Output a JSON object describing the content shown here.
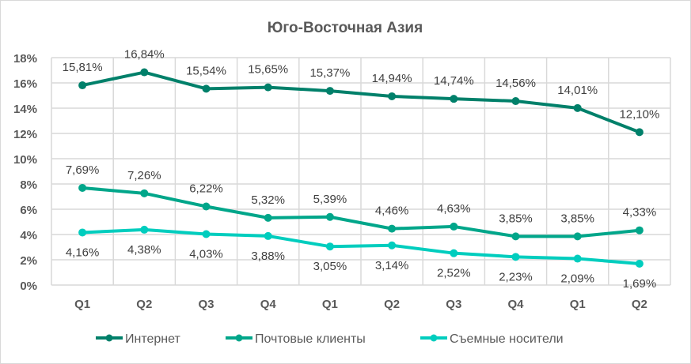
{
  "chart_data": {
    "type": "line",
    "title": "Юго-Восточная Азия",
    "categories": [
      "Q1",
      "Q2",
      "Q3",
      "Q4",
      "Q1",
      "Q2",
      "Q3",
      "Q4",
      "Q1",
      "Q2"
    ],
    "ylim": [
      0,
      18
    ],
    "yticks": [
      "0%",
      "2%",
      "4%",
      "6%",
      "8%",
      "10%",
      "12%",
      "14%",
      "16%",
      "18%"
    ],
    "grid": true,
    "legend_position": "bottom",
    "series": [
      {
        "name": "Интернет",
        "color": "#00806a",
        "label_pos": "above",
        "values": [
          15.81,
          16.84,
          15.54,
          15.65,
          15.37,
          14.94,
          14.74,
          14.56,
          14.01,
          12.1
        ],
        "labels": [
          "15,81%",
          "16,84%",
          "15,54%",
          "15,65%",
          "15,37%",
          "14,94%",
          "14,74%",
          "14,56%",
          "14,01%",
          "12,10%"
        ]
      },
      {
        "name": "Почтовые клиенты",
        "color": "#00a68a",
        "label_pos": "above",
        "values": [
          7.69,
          7.26,
          6.22,
          5.32,
          5.39,
          4.46,
          4.63,
          3.85,
          3.85,
          4.33
        ],
        "labels": [
          "7,69%",
          "7,26%",
          "6,22%",
          "5,32%",
          "5,39%",
          "4,46%",
          "4,63%",
          "3,85%",
          "3,85%",
          "4,33%"
        ]
      },
      {
        "name": "Съемные носители",
        "color": "#00cdbe",
        "label_pos": "below",
        "values": [
          4.16,
          4.38,
          4.03,
          3.88,
          3.05,
          3.14,
          2.52,
          2.23,
          2.09,
          1.69
        ],
        "labels": [
          "4,16%",
          "4,38%",
          "4,03%",
          "3,88%",
          "3,05%",
          "3,14%",
          "2,52%",
          "2,23%",
          "2,09%",
          "1,69%"
        ]
      }
    ]
  }
}
